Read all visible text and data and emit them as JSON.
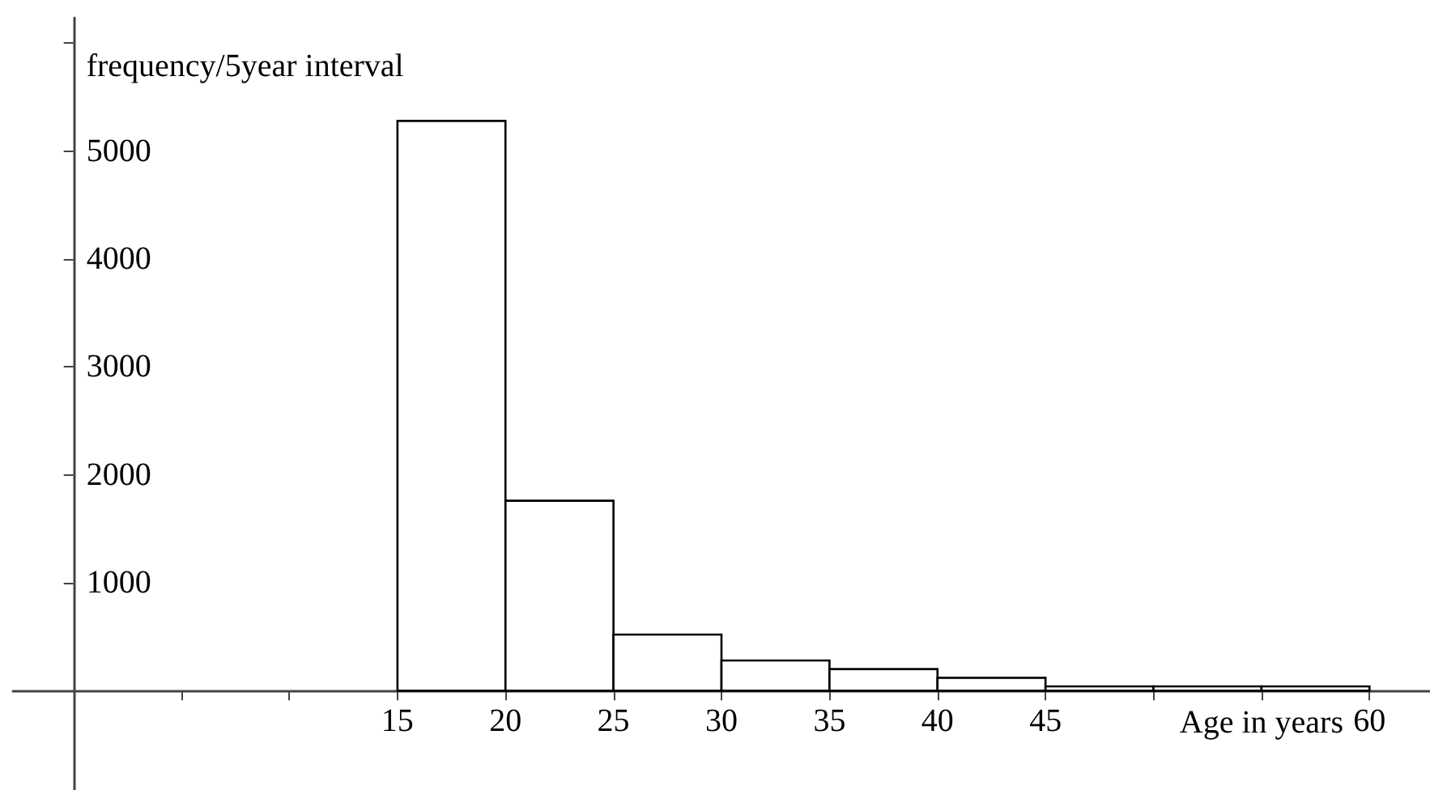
{
  "chart_data": {
    "type": "histogram",
    "xlabel": "Age in years",
    "ylabel": "frequency/5year interval",
    "bins": [
      15,
      20,
      25,
      30,
      35,
      40,
      45,
      50,
      55,
      60
    ],
    "values": [
      5280,
      1760,
      520,
      280,
      200,
      120,
      40,
      40,
      40
    ],
    "xlim": [
      -2.8,
      62.8
    ],
    "ylim": [
      -920,
      6235
    ],
    "xticks": [
      {
        "value": 5,
        "label": null
      },
      {
        "value": 10,
        "label": null
      },
      15,
      20,
      25,
      30,
      35,
      40,
      45,
      {
        "value": 50,
        "label": null
      },
      {
        "value": 55,
        "label": null
      },
      60
    ],
    "yticks": [
      1000,
      2000,
      3000,
      4000,
      5000,
      {
        "value": 6000,
        "label": null
      }
    ]
  }
}
